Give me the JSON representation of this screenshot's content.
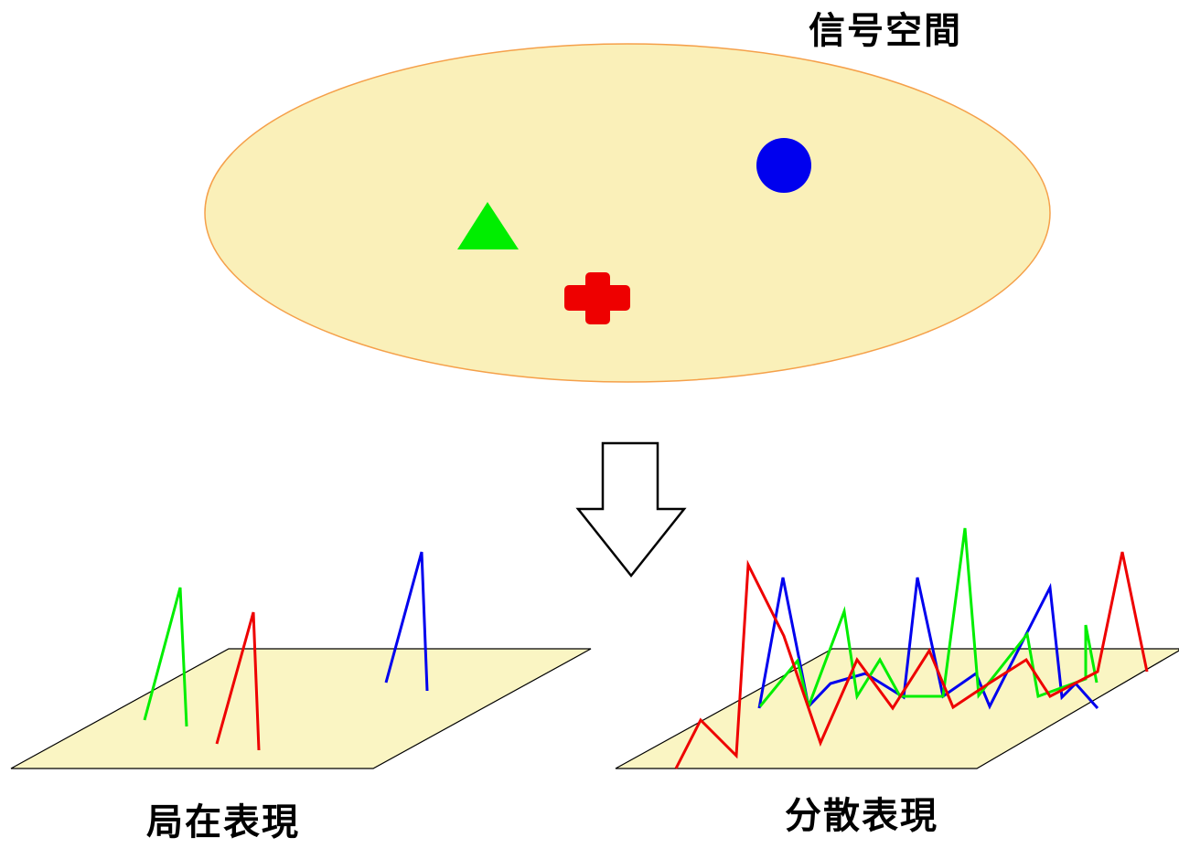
{
  "labels": {
    "signal_space": "信号空間",
    "local_representation": "局在表現",
    "distributed_representation": "分散表現"
  },
  "colors": {
    "ellipse_fill": "#faf0b9",
    "ellipse_stroke": "#f5a04a",
    "plane_fill": "#faf5c3",
    "circle": "#0000ee",
    "triangle": "#00ee00",
    "cross": "#ee0000",
    "series_green": "#00ee00",
    "series_red": "#ee0000",
    "series_blue": "#0000ee"
  },
  "icons": {
    "signal_circle": "blue-circle-icon",
    "signal_triangle": "green-triangle-icon",
    "signal_cross": "red-cross-icon",
    "transform_arrow": "down-arrow-icon"
  }
}
